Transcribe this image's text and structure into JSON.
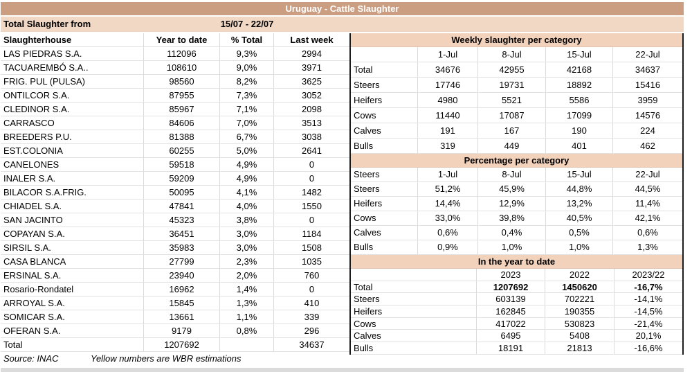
{
  "title": "Uruguay - Cattle Slaughter",
  "colors": {
    "title_bg": "#cb9d81",
    "subheader_bg": "#f0d8c5",
    "section_bg": "#f3d2bc",
    "grid": "#dadada",
    "strip": "#dbdbdb"
  },
  "left_table": {
    "period_label": "Total Slaughter from",
    "period_value": "15/07 - 22/07",
    "columns": [
      "Slaughterhouse",
      "Year to date",
      "% Total",
      "Last week"
    ],
    "rows": [
      [
        "LAS PIEDRAS S.A.",
        "112096",
        "9,3%",
        "2994"
      ],
      [
        "TACUAREMBÓ S.A..",
        "108610",
        "9,0%",
        "3971"
      ],
      [
        "FRIG. PUL (PULSA)",
        "98560",
        "8,2%",
        "3625"
      ],
      [
        "ONTILCOR S.A.",
        "87955",
        "7,3%",
        "3052"
      ],
      [
        "CLEDINOR S.A.",
        "85967",
        "7,1%",
        "2098"
      ],
      [
        "CARRASCO",
        "84606",
        "7,0%",
        "3513"
      ],
      [
        "BREEDERS P.U.",
        "81388",
        "6,7%",
        "3038"
      ],
      [
        "EST.COLONIA",
        "60255",
        "5,0%",
        "2641"
      ],
      [
        "CANELONES",
        "59518",
        "4,9%",
        "0"
      ],
      [
        "INALER S.A.",
        "59209",
        "4,9%",
        "0"
      ],
      [
        "BILACOR S.A.FRIG.",
        "50095",
        "4,1%",
        "1482"
      ],
      [
        "CHIADEL S.A.",
        "47841",
        "4,0%",
        "1550"
      ],
      [
        "SAN JACINTO",
        "45323",
        "3,8%",
        "0"
      ],
      [
        "COPAYAN S.A.",
        "36451",
        "3,0%",
        "1184"
      ],
      [
        "SIRSIL S.A.",
        "35983",
        "3,0%",
        "1508"
      ],
      [
        "CASA BLANCA",
        "27799",
        "2,3%",
        "1035"
      ],
      [
        "ERSINAL S.A.",
        "23940",
        "2,0%",
        "760"
      ],
      [
        "Rosario-Rondatel",
        "16962",
        "1,4%",
        "0"
      ],
      [
        "ARROYAL S.A.",
        "15845",
        "1,3%",
        "410"
      ],
      [
        "SOMICAR S.A.",
        "13661",
        "1,1%",
        "339"
      ],
      [
        "OFERAN S.A.",
        "9179",
        "0,8%",
        "296"
      ]
    ],
    "total_row": [
      "Total",
      "1207692",
      "",
      "34637"
    ],
    "source": "Source: INAC",
    "note": "Yellow numbers are WBR estimations"
  },
  "weekly": {
    "title": "Weekly slaughter per category",
    "columns": [
      "",
      "1-Jul",
      "8-Jul",
      "15-Jul",
      "22-Jul"
    ],
    "rows": [
      [
        "Total",
        "34676",
        "42955",
        "42168",
        "34637"
      ],
      [
        "Steers",
        "17746",
        "19731",
        "18892",
        "15416"
      ],
      [
        "Heifers",
        "4980",
        "5521",
        "5586",
        "3959"
      ],
      [
        "Cows",
        "11440",
        "17087",
        "17099",
        "14576"
      ],
      [
        "Calves",
        "191",
        "167",
        "190",
        "224"
      ],
      [
        "Bulls",
        "319",
        "449",
        "401",
        "462"
      ]
    ]
  },
  "percentage": {
    "title": "Percentage per category",
    "columns": [
      "Steers",
      "1-Jul",
      "8-Jul",
      "15-Jul",
      "22-Jul"
    ],
    "rows": [
      [
        "Steers",
        "51,2%",
        "45,9%",
        "44,8%",
        "44,5%"
      ],
      [
        "Heifers",
        "14,4%",
        "12,9%",
        "13,2%",
        "11,4%"
      ],
      [
        "Cows",
        "33,0%",
        "39,8%",
        "40,5%",
        "42,1%"
      ],
      [
        "Calves",
        "0,6%",
        "0,4%",
        "0,5%",
        "0,6%"
      ],
      [
        "Bulls",
        "0,9%",
        "1,0%",
        "1,0%",
        "1,3%"
      ]
    ]
  },
  "ytd": {
    "title": "In the year to date",
    "columns": [
      "",
      "2023",
      "2022",
      "2023/22"
    ],
    "rows": [
      [
        "Total",
        "1207692",
        "1450620",
        "-16,7%"
      ],
      [
        "Steers",
        "603139",
        "702221",
        "-14,1%"
      ],
      [
        "Heifers",
        "162845",
        "190355",
        "-14,5%"
      ],
      [
        "Cows",
        "417022",
        "530823",
        "-21,4%"
      ],
      [
        "Calves",
        "6495",
        "5408",
        "20,1%"
      ],
      [
        "Bulls",
        "18191",
        "21813",
        "-16,6%"
      ]
    ]
  }
}
